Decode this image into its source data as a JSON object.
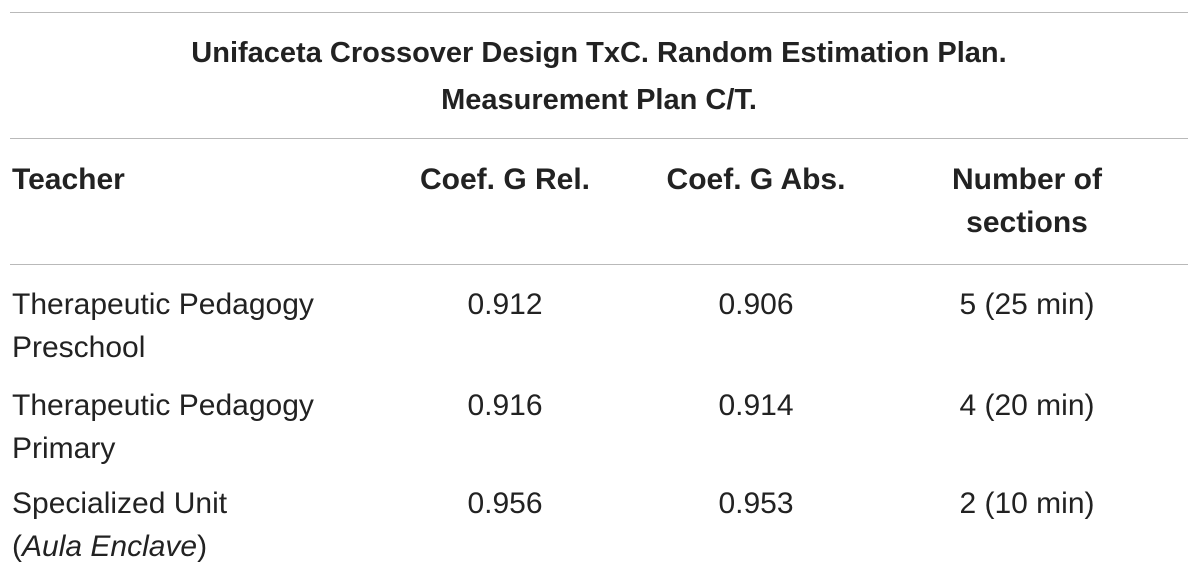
{
  "table": {
    "title_line1": "Unifaceta Crossover Design TxC. Random Estimation Plan.",
    "title_line2": "Measurement Plan C/T.",
    "headers": {
      "teacher": "Teacher",
      "coef_rel": "Coef. G Rel.",
      "coef_abs": "Coef. G Abs.",
      "sections_line1": "Number of",
      "sections_line2": "sections"
    },
    "rows": [
      {
        "teacher_line1": "Therapeutic Pedagogy",
        "teacher_line2": "Preschool",
        "coef_rel": "0.912",
        "coef_abs": "0.906",
        "sections": "5 (25 min)"
      },
      {
        "teacher_line1": "Therapeutic Pedagogy",
        "teacher_line2": "Primary",
        "coef_rel": "0.916",
        "coef_abs": "0.914",
        "sections": "4 (20 min)"
      },
      {
        "teacher_line1": "Specialized Unit",
        "teacher_line2_open": "(",
        "teacher_line2_italic": "Aula Enclave",
        "teacher_line2_close": ")",
        "coef_rel": "0.956",
        "coef_abs": "0.953",
        "sections": "2 (10 min)"
      }
    ]
  }
}
